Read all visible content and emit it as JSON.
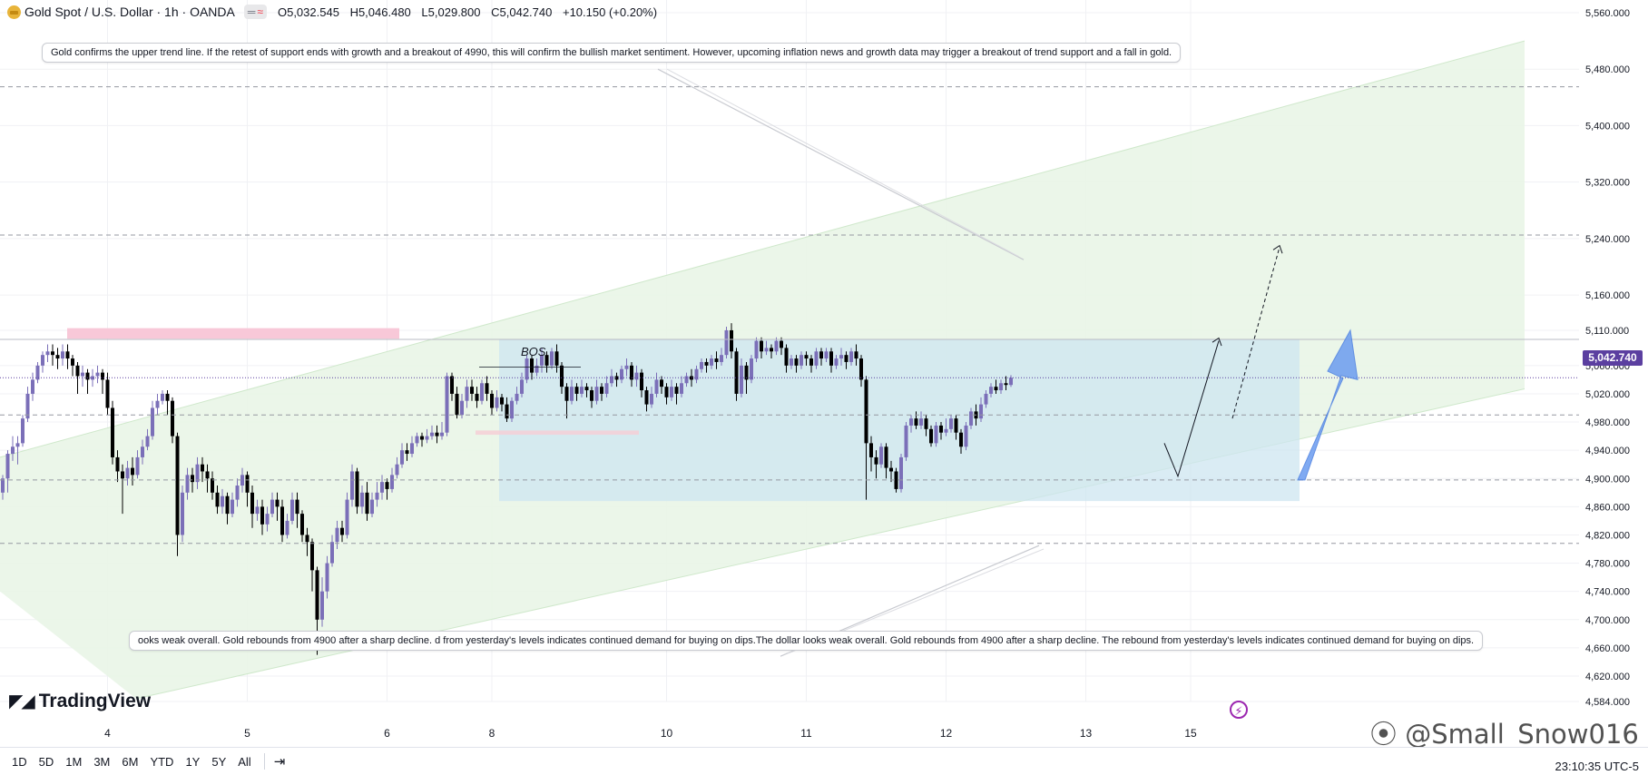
{
  "header": {
    "title": "Gold Spot / U.S. Dollar · 1h · OANDA",
    "badge_equal": "═",
    "badge_wave": "≈",
    "open_key": "O",
    "open": "5,032.545",
    "high_key": "H",
    "high": "5,046.480",
    "low_key": "L",
    "low": "5,029.800",
    "close_key": "C",
    "close": "5,042.740",
    "change": "+10.150 (+0.20%)"
  },
  "notes": {
    "top": "Gold confirms the upper trend line. If the retest of support ends with growth and a breakout of 4990, this will confirm the bullish market sentiment. However, upcoming inflation news and growth data may trigger a breakout of trend support and a fall in gold.",
    "bottom": "ooks weak overall. Gold rebounds from 4900 after a sharp decline. d from yesterday's levels indicates continued demand for buying on dips.The dollar looks weak overall. Gold rebounds from 4900 after a sharp decline. The rebound from yesterday's levels indicates continued demand for buying on dips."
  },
  "bos_label": "BOS",
  "current_price": "5,042.740",
  "branding": {
    "logo": "TradingView",
    "watermark": "@Small_Snow016"
  },
  "time_ranges": [
    "1D",
    "5D",
    "1M",
    "3M",
    "6M",
    "YTD",
    "1Y",
    "5Y",
    "All"
  ],
  "clock": "23:10:35 UTC-5",
  "colors": {
    "bull": "#7b6fb8",
    "bear": "#000000",
    "channel_fill": "#e9f5e7",
    "range_box": "#cde5f0",
    "supply_zone": "#f8c8d8",
    "arrow": "#6b9cf0",
    "price_tag": "#5b3fa0"
  },
  "chart_data": {
    "type": "candlestick",
    "title": "Gold Spot / U.S. Dollar · 1h · OANDA",
    "y_axis_ticks": [
      "5,560.000",
      "5,480.000",
      "5,400.000",
      "5,320.000",
      "5,240.000",
      "5,160.000",
      "5,110.000",
      "5,060.000",
      "5,020.000",
      "4,980.000",
      "4,940.000",
      "4,900.000",
      "4,860.000",
      "4,820.000",
      "4,780.000",
      "4,740.000",
      "4,700.000",
      "4,660.000",
      "4,620.000",
      "4,584.000"
    ],
    "y_axis_values": [
      5560,
      5480,
      5400,
      5320,
      5240,
      5160,
      5110,
      5060,
      5020,
      4980,
      4940,
      4900,
      4860,
      4820,
      4780,
      4740,
      4700,
      4660,
      4620,
      4584
    ],
    "x_axis_ticks": [
      "4",
      "5",
      "6",
      "8",
      "10",
      "11",
      "12",
      "13",
      "15"
    ],
    "x_tick_candle_index": [
      21,
      49,
      77,
      98,
      133,
      161,
      189,
      217,
      238
    ],
    "ylim": [
      4584,
      5572
    ],
    "levels": [
      5455,
      5245,
      5097,
      4990,
      4898,
      4808
    ],
    "last_price": 5042.74,
    "candles": [
      [
        4880,
        4900,
        4870,
        4905
      ],
      [
        4900,
        4935,
        4880,
        4940
      ],
      [
        4935,
        4945,
        4925,
        4960
      ],
      [
        4945,
        4950,
        4920,
        4960
      ],
      [
        4950,
        4985,
        4945,
        4990
      ],
      [
        4985,
        5020,
        4980,
        5030
      ],
      [
        5020,
        5040,
        5010,
        5050
      ],
      [
        5040,
        5060,
        5035,
        5065
      ],
      [
        5060,
        5075,
        5050,
        5080
      ],
      [
        5075,
        5080,
        5065,
        5090
      ],
      [
        5080,
        5075,
        5060,
        5090
      ],
      [
        5075,
        5070,
        5055,
        5085
      ],
      [
        5070,
        5080,
        5060,
        5090
      ],
      [
        5080,
        5070,
        5055,
        5090
      ],
      [
        5070,
        5060,
        5045,
        5075
      ],
      [
        5060,
        5045,
        5020,
        5065
      ],
      [
        5045,
        5050,
        5030,
        5060
      ],
      [
        5050,
        5040,
        5020,
        5055
      ],
      [
        5040,
        5045,
        5030,
        5055
      ],
      [
        5045,
        5050,
        5035,
        5060
      ],
      [
        5050,
        5040,
        5020,
        5055
      ],
      [
        5040,
        5000,
        4990,
        5050
      ],
      [
        5000,
        4930,
        4920,
        5010
      ],
      [
        4930,
        4910,
        4895,
        4940
      ],
      [
        4910,
        4900,
        4850,
        4920
      ],
      [
        4900,
        4915,
        4890,
        4925
      ],
      [
        4915,
        4905,
        4890,
        4930
      ],
      [
        4905,
        4930,
        4900,
        4940
      ],
      [
        4930,
        4945,
        4920,
        4955
      ],
      [
        4945,
        4960,
        4940,
        4970
      ],
      [
        4960,
        5000,
        4955,
        5010
      ],
      [
        5000,
        5010,
        4990,
        5020
      ],
      [
        5010,
        5020,
        5005,
        5025
      ],
      [
        5020,
        5010,
        4990,
        5025
      ],
      [
        5010,
        4960,
        4950,
        5015
      ],
      [
        4960,
        4820,
        4790,
        4965
      ],
      [
        4820,
        4880,
        4810,
        4890
      ],
      [
        4880,
        4905,
        4870,
        4915
      ],
      [
        4905,
        4895,
        4880,
        4915
      ],
      [
        4895,
        4920,
        4885,
        4930
      ],
      [
        4920,
        4910,
        4895,
        4930
      ],
      [
        4910,
        4900,
        4880,
        4920
      ],
      [
        4900,
        4880,
        4870,
        4910
      ],
      [
        4880,
        4860,
        4850,
        4890
      ],
      [
        4860,
        4875,
        4850,
        4885
      ],
      [
        4875,
        4850,
        4835,
        4880
      ],
      [
        4850,
        4870,
        4845,
        4880
      ],
      [
        4870,
        4890,
        4860,
        4900
      ],
      [
        4890,
        4905,
        4880,
        4915
      ],
      [
        4905,
        4880,
        4860,
        4910
      ],
      [
        4880,
        4850,
        4830,
        4890
      ],
      [
        4850,
        4860,
        4840,
        4870
      ],
      [
        4860,
        4835,
        4820,
        4870
      ],
      [
        4835,
        4850,
        4825,
        4860
      ],
      [
        4850,
        4870,
        4845,
        4880
      ],
      [
        4870,
        4860,
        4840,
        4880
      ],
      [
        4860,
        4820,
        4810,
        4870
      ],
      [
        4820,
        4840,
        4815,
        4850
      ],
      [
        4840,
        4870,
        4835,
        4880
      ],
      [
        4870,
        4850,
        4830,
        4880
      ],
      [
        4850,
        4820,
        4810,
        4855
      ],
      [
        4820,
        4810,
        4790,
        4830
      ],
      [
        4810,
        4770,
        4740,
        4815
      ],
      [
        4770,
        4700,
        4650,
        4775
      ],
      [
        4700,
        4740,
        4690,
        4760
      ],
      [
        4740,
        4780,
        4730,
        4790
      ],
      [
        4780,
        4810,
        4775,
        4820
      ],
      [
        4810,
        4830,
        4800,
        4840
      ],
      [
        4830,
        4820,
        4810,
        4840
      ],
      [
        4820,
        4870,
        4815,
        4880
      ],
      [
        4870,
        4910,
        4860,
        4920
      ],
      [
        4910,
        4860,
        4850,
        4915
      ],
      [
        4860,
        4880,
        4850,
        4890
      ],
      [
        4880,
        4850,
        4840,
        4895
      ],
      [
        4850,
        4870,
        4845,
        4880
      ],
      [
        4870,
        4880,
        4860,
        4895
      ],
      [
        4880,
        4895,
        4870,
        4905
      ],
      [
        4895,
        4885,
        4870,
        4900
      ],
      [
        4885,
        4905,
        4880,
        4915
      ],
      [
        4905,
        4920,
        4900,
        4930
      ],
      [
        4920,
        4940,
        4915,
        4950
      ],
      [
        4940,
        4935,
        4925,
        4950
      ],
      [
        4935,
        4950,
        4930,
        4960
      ],
      [
        4950,
        4960,
        4945,
        4965
      ],
      [
        4960,
        4955,
        4945,
        4965
      ],
      [
        4955,
        4960,
        4950,
        4970
      ],
      [
        4960,
        4965,
        4955,
        4975
      ],
      [
        4965,
        4960,
        4950,
        4975
      ],
      [
        4960,
        4965,
        4955,
        4980
      ],
      [
        4965,
        5045,
        4960,
        5050
      ],
      [
        5045,
        5020,
        5010,
        5050
      ],
      [
        5020,
        4990,
        4985,
        5030
      ],
      [
        4990,
        5010,
        4985,
        5020
      ],
      [
        5010,
        5030,
        5000,
        5040
      ],
      [
        5030,
        5020,
        5010,
        5040
      ],
      [
        5020,
        5010,
        5000,
        5030
      ],
      [
        5010,
        5035,
        5005,
        5040
      ],
      [
        5035,
        5020,
        5010,
        5045
      ],
      [
        5020,
        5000,
        4990,
        5025
      ],
      [
        5000,
        5015,
        4995,
        5025
      ],
      [
        5015,
        5005,
        4995,
        5020
      ],
      [
        5005,
        4985,
        4980,
        5015
      ],
      [
        4985,
        5010,
        4980,
        5015
      ],
      [
        5010,
        5020,
        5005,
        5030
      ],
      [
        5020,
        5040,
        5015,
        5050
      ],
      [
        5040,
        5070,
        5035,
        5075
      ],
      [
        5070,
        5050,
        5040,
        5075
      ],
      [
        5050,
        5060,
        5045,
        5070
      ],
      [
        5060,
        5075,
        5050,
        5085
      ],
      [
        5075,
        5060,
        5050,
        5080
      ],
      [
        5060,
        5080,
        5055,
        5085
      ],
      [
        5080,
        5060,
        5050,
        5090
      ],
      [
        5060,
        5030,
        5020,
        5065
      ],
      [
        5030,
        5010,
        4985,
        5035
      ],
      [
        5010,
        5030,
        5005,
        5040
      ],
      [
        5030,
        5020,
        5010,
        5035
      ],
      [
        5020,
        5030,
        5015,
        5040
      ],
      [
        5030,
        5025,
        5015,
        5035
      ],
      [
        5025,
        5010,
        5000,
        5030
      ],
      [
        5010,
        5030,
        5005,
        5040
      ],
      [
        5030,
        5020,
        5010,
        5035
      ],
      [
        5020,
        5035,
        5015,
        5045
      ],
      [
        5035,
        5045,
        5030,
        5055
      ],
      [
        5045,
        5040,
        5030,
        5050
      ],
      [
        5040,
        5055,
        5035,
        5060
      ],
      [
        5055,
        5060,
        5045,
        5070
      ],
      [
        5060,
        5040,
        5030,
        5065
      ],
      [
        5040,
        5050,
        5030,
        5060
      ],
      [
        5050,
        5025,
        5015,
        5055
      ],
      [
        5025,
        5005,
        4995,
        5030
      ],
      [
        5005,
        5020,
        5000,
        5030
      ],
      [
        5020,
        5040,
        5015,
        5050
      ],
      [
        5040,
        5030,
        5020,
        5045
      ],
      [
        5030,
        5015,
        5005,
        5035
      ],
      [
        5015,
        5030,
        5010,
        5040
      ],
      [
        5030,
        5020,
        5005,
        5035
      ],
      [
        5020,
        5035,
        5015,
        5045
      ],
      [
        5035,
        5045,
        5030,
        5050
      ],
      [
        5045,
        5040,
        5030,
        5055
      ],
      [
        5040,
        5055,
        5035,
        5060
      ],
      [
        5055,
        5065,
        5050,
        5070
      ],
      [
        5065,
        5060,
        5050,
        5070
      ],
      [
        5060,
        5070,
        5055,
        5075
      ],
      [
        5070,
        5065,
        5055,
        5080
      ],
      [
        5065,
        5075,
        5060,
        5085
      ],
      [
        5075,
        5110,
        5070,
        5115
      ],
      [
        5110,
        5080,
        5070,
        5120
      ],
      [
        5080,
        5020,
        5010,
        5085
      ],
      [
        5020,
        5060,
        5015,
        5070
      ],
      [
        5060,
        5040,
        5020,
        5065
      ],
      [
        5040,
        5070,
        5035,
        5075
      ],
      [
        5070,
        5095,
        5065,
        5100
      ],
      [
        5095,
        5080,
        5070,
        5100
      ],
      [
        5080,
        5085,
        5075,
        5095
      ],
      [
        5085,
        5080,
        5070,
        5090
      ],
      [
        5080,
        5095,
        5075,
        5100
      ],
      [
        5095,
        5085,
        5075,
        5100
      ],
      [
        5085,
        5060,
        5050,
        5090
      ],
      [
        5060,
        5070,
        5055,
        5075
      ],
      [
        5070,
        5060,
        5050,
        5075
      ],
      [
        5060,
        5075,
        5055,
        5080
      ],
      [
        5075,
        5070,
        5060,
        5080
      ],
      [
        5070,
        5060,
        5050,
        5075
      ],
      [
        5060,
        5080,
        5055,
        5085
      ],
      [
        5080,
        5070,
        5060,
        5085
      ],
      [
        5070,
        5080,
        5065,
        5085
      ],
      [
        5080,
        5060,
        5050,
        5085
      ],
      [
        5060,
        5070,
        5055,
        5075
      ],
      [
        5070,
        5075,
        5060,
        5085
      ],
      [
        5075,
        5065,
        5055,
        5080
      ],
      [
        5065,
        5080,
        5060,
        5085
      ],
      [
        5080,
        5070,
        5060,
        5090
      ],
      [
        5070,
        5040,
        5030,
        5075
      ],
      [
        5040,
        4950,
        4870,
        5045
      ],
      [
        4950,
        4930,
        4910,
        4960
      ],
      [
        4930,
        4920,
        4900,
        4940
      ],
      [
        4920,
        4945,
        4915,
        4950
      ],
      [
        4945,
        4915,
        4900,
        4950
      ],
      [
        4915,
        4910,
        4895,
        4925
      ],
      [
        4910,
        4885,
        4880,
        4915
      ],
      [
        4885,
        4930,
        4880,
        4935
      ],
      [
        4930,
        4975,
        4925,
        4980
      ],
      [
        4975,
        4985,
        4965,
        4990
      ],
      [
        4985,
        4975,
        4970,
        4995
      ],
      [
        4975,
        4985,
        4970,
        4995
      ],
      [
        4985,
        4970,
        4960,
        4990
      ],
      [
        4970,
        4950,
        4945,
        4975
      ],
      [
        4950,
        4975,
        4945,
        4980
      ],
      [
        4975,
        4965,
        4955,
        4980
      ],
      [
        4965,
        4970,
        4960,
        4985
      ],
      [
        4970,
        4985,
        4965,
        4990
      ],
      [
        4985,
        4965,
        4955,
        4990
      ],
      [
        4965,
        4945,
        4935,
        4970
      ],
      [
        4945,
        4975,
        4940,
        4980
      ],
      [
        4975,
        4995,
        4970,
        5000
      ],
      [
        4995,
        4985,
        4975,
        5005
      ],
      [
        4985,
        5005,
        4980,
        5015
      ],
      [
        5005,
        5020,
        5000,
        5025
      ],
      [
        5020,
        5030,
        5015,
        5035
      ],
      [
        5030,
        5025,
        5020,
        5040
      ],
      [
        5025,
        5035,
        5020,
        5040
      ],
      [
        5035,
        5032.5,
        5025,
        5045
      ],
      [
        5032.5,
        5042.74,
        5029.8,
        5046.48
      ]
    ]
  }
}
